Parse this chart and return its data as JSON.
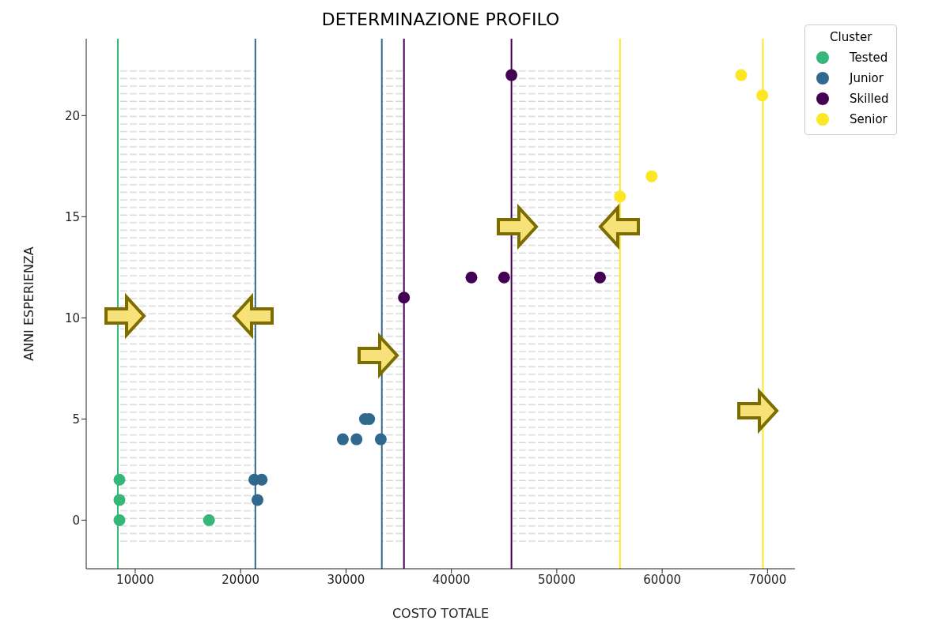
{
  "chart_data": {
    "type": "scatter",
    "title": "DETERMINAZIONE PROFILO",
    "xlabel": "COSTO TOTALE",
    "ylabel": "ANNI ESPERIENZA",
    "legend_title": "Cluster",
    "legend": "top right",
    "marker": "circle",
    "xlim": [
      5350,
      72600
    ],
    "ylim": [
      -2.4,
      23.8
    ],
    "xticks": [
      10000,
      20000,
      30000,
      40000,
      50000,
      60000,
      70000
    ],
    "yticks": [
      0,
      5,
      10,
      15,
      20
    ],
    "series": [
      {
        "name": "Tested",
        "color": "#35b779",
        "x": [
          8500,
          8500,
          8500,
          17000
        ],
        "values": [
          0,
          1,
          2,
          0
        ]
      },
      {
        "name": "Junior",
        "color": "#31688e",
        "x": [
          21300,
          22000,
          21600,
          29700,
          31000,
          33300,
          31800,
          32200
        ],
        "values": [
          2,
          2,
          1,
          4,
          4,
          4,
          5,
          5
        ]
      },
      {
        "name": "Skilled",
        "color": "#440154",
        "x": [
          35500,
          41900,
          45000,
          54100,
          45700
        ],
        "values": [
          11,
          12,
          12,
          12,
          22
        ]
      },
      {
        "name": "Senior",
        "color": "#fde725",
        "x": [
          56000,
          59000,
          67500,
          69500
        ],
        "values": [
          16,
          17,
          22,
          21
        ]
      }
    ],
    "ref_lines": [
      {
        "axis": "x",
        "value": 8350,
        "color": "#35b779"
      },
      {
        "axis": "x",
        "value": 21400,
        "color": "#31688e"
      },
      {
        "axis": "x",
        "value": 33400,
        "color": "#31688e"
      },
      {
        "axis": "x",
        "value": 35500,
        "color": "#440154"
      },
      {
        "axis": "x",
        "value": 45700,
        "color": "#440154"
      },
      {
        "axis": "x",
        "value": 56000,
        "color": "#fde725"
      },
      {
        "axis": "x",
        "value": 69550,
        "color": "#fde725"
      }
    ],
    "bands": [
      {
        "axis": "x",
        "from": 8350,
        "to": 21400,
        "color": "#c8c8c8"
      },
      {
        "axis": "x",
        "from": 33400,
        "to": 35500,
        "color": "#c8c8c8"
      },
      {
        "axis": "x",
        "from": 45700,
        "to": 56000,
        "color": "#c8c8c8"
      }
    ]
  }
}
